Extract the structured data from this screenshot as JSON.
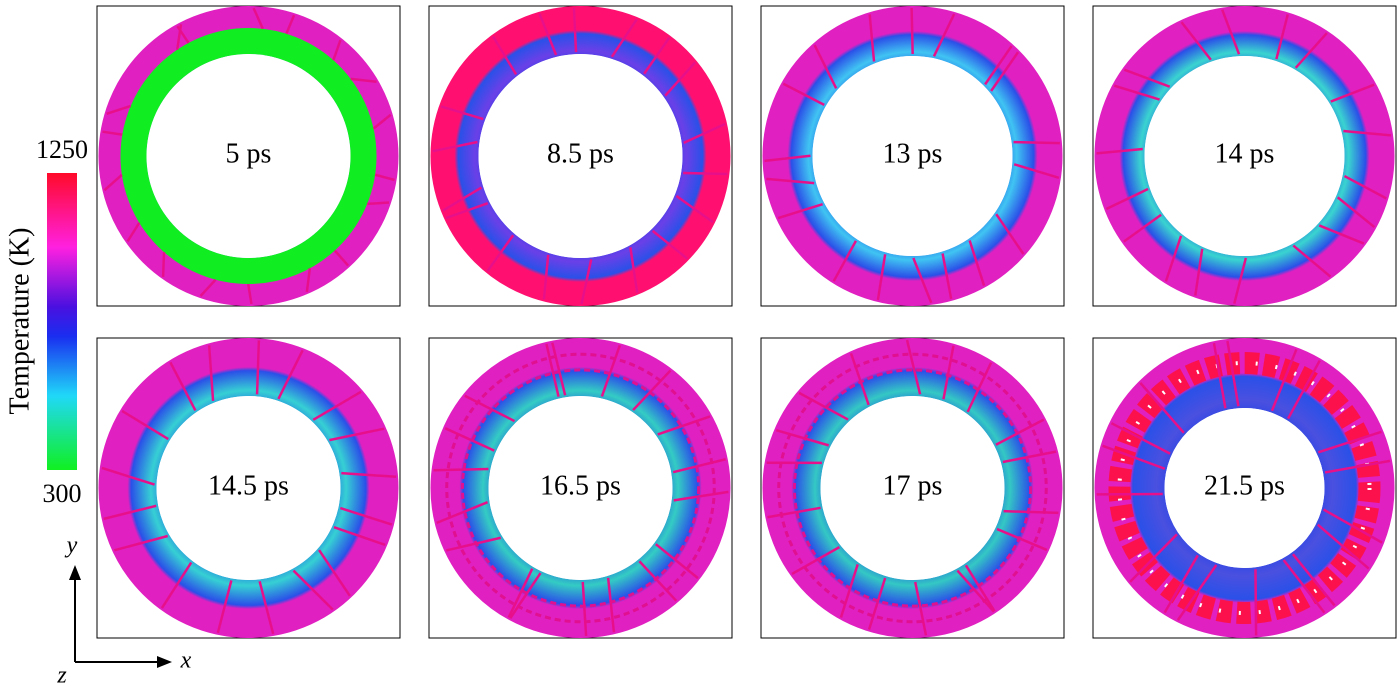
{
  "colorbar": {
    "title": "Temperature (K)",
    "max": 1250,
    "min": 300
  },
  "panels": [
    {
      "label": "5 ps"
    },
    {
      "label": "8.5 ps"
    },
    {
      "label": "13 ps"
    },
    {
      "label": "14 ps"
    },
    {
      "label": "14.5 ps"
    },
    {
      "label": "16.5 ps"
    },
    {
      "label": "17 ps"
    },
    {
      "label": "21.5 ps"
    }
  ],
  "axes": {
    "x": "x",
    "y": "y",
    "z": "z"
  }
}
